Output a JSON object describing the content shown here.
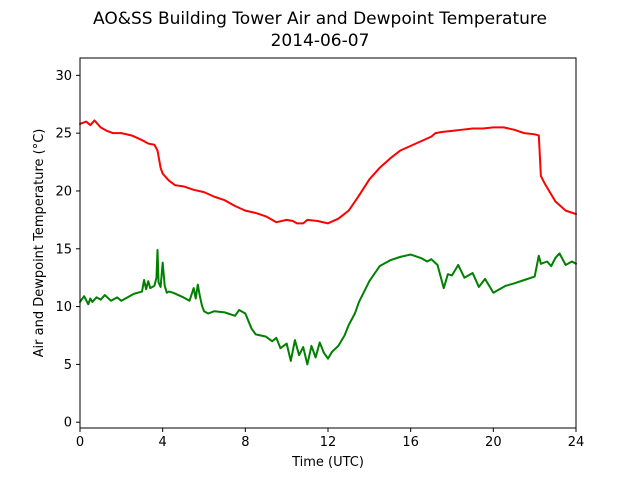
{
  "chart_data": {
    "type": "line",
    "title": "AO&SS Building Tower Air and Dewpoint Temperature",
    "subtitle": "2014-06-07",
    "xlabel": "Time (UTC)",
    "ylabel": "Air and Dewpoint Temperature (°C)",
    "xlim": [
      0,
      24
    ],
    "ylim": [
      -0.5,
      31.5
    ],
    "xticks": [
      0,
      4,
      8,
      12,
      16,
      20,
      24
    ],
    "yticks": [
      0,
      5,
      10,
      15,
      20,
      25,
      30
    ],
    "grid": false,
    "legend": null,
    "series": [
      {
        "color": "#ff0000",
        "x": [
          0,
          0.3,
          0.5,
          0.7,
          1.0,
          1.3,
          1.6,
          2.0,
          2.5,
          3.0,
          3.3,
          3.6,
          3.75,
          3.9,
          4.0,
          4.3,
          4.6,
          5.0,
          5.5,
          6.0,
          6.5,
          7.0,
          7.5,
          8.0,
          8.5,
          9.0,
          9.5,
          10.0,
          10.3,
          10.5,
          10.8,
          11.0,
          11.5,
          12.0,
          12.5,
          13.0,
          13.5,
          14.0,
          14.5,
          15.0,
          15.5,
          16.0,
          16.5,
          17.0,
          17.2,
          17.5,
          18.0,
          18.5,
          19.0,
          19.5,
          20.0,
          20.5,
          21.0,
          21.5,
          22.0,
          22.2,
          22.3,
          22.5,
          23.0,
          23.5,
          24.0
        ],
        "y": [
          25.8,
          26.0,
          25.7,
          26.1,
          25.5,
          25.2,
          25.0,
          25.0,
          24.8,
          24.4,
          24.1,
          24.0,
          23.5,
          22.0,
          21.5,
          20.9,
          20.5,
          20.4,
          20.1,
          19.9,
          19.5,
          19.2,
          18.7,
          18.3,
          18.1,
          17.8,
          17.3,
          17.5,
          17.4,
          17.2,
          17.2,
          17.5,
          17.4,
          17.2,
          17.6,
          18.3,
          19.6,
          21.0,
          22.0,
          22.8,
          23.5,
          23.9,
          24.3,
          24.7,
          25.0,
          25.1,
          25.2,
          25.3,
          25.4,
          25.4,
          25.5,
          25.5,
          25.3,
          25.0,
          24.9,
          24.8,
          21.3,
          20.6,
          19.1,
          18.3,
          18.0
        ]
      },
      {
        "color": "#008000",
        "x": [
          0,
          0.2,
          0.4,
          0.5,
          0.6,
          0.8,
          1.0,
          1.2,
          1.5,
          1.8,
          2.0,
          2.3,
          2.6,
          3.0,
          3.1,
          3.2,
          3.3,
          3.4,
          3.6,
          3.7,
          3.75,
          3.8,
          3.9,
          4.0,
          4.1,
          4.2,
          4.3,
          4.5,
          5.0,
          5.3,
          5.5,
          5.6,
          5.7,
          5.8,
          5.9,
          6.0,
          6.2,
          6.5,
          7.0,
          7.5,
          7.7,
          8.0,
          8.3,
          8.5,
          9.0,
          9.3,
          9.5,
          9.7,
          10.0,
          10.2,
          10.4,
          10.6,
          10.8,
          11.0,
          11.2,
          11.4,
          11.6,
          11.8,
          12.0,
          12.2,
          12.5,
          12.8,
          13.0,
          13.3,
          13.5,
          14.0,
          14.5,
          15.0,
          15.5,
          16.0,
          16.5,
          16.8,
          17.0,
          17.3,
          17.6,
          17.8,
          18.0,
          18.3,
          18.6,
          19.0,
          19.3,
          19.6,
          20.0,
          20.3,
          20.6,
          21.0,
          21.5,
          22.0,
          22.2,
          22.3,
          22.6,
          22.8,
          23.0,
          23.2,
          23.5,
          23.8,
          24.0
        ],
        "y": [
          10.4,
          10.9,
          10.2,
          10.7,
          10.4,
          10.8,
          10.6,
          11.0,
          10.5,
          10.8,
          10.5,
          10.8,
          11.1,
          11.3,
          12.3,
          11.5,
          12.2,
          11.6,
          11.8,
          12.5,
          14.9,
          12.1,
          11.7,
          13.8,
          11.8,
          11.2,
          11.3,
          11.2,
          10.8,
          10.5,
          11.6,
          10.7,
          11.9,
          10.9,
          10.1,
          9.6,
          9.4,
          9.6,
          9.5,
          9.2,
          9.7,
          9.4,
          8.1,
          7.6,
          7.4,
          7.0,
          7.3,
          6.4,
          6.8,
          5.3,
          7.1,
          5.8,
          6.5,
          5.0,
          6.6,
          5.6,
          6.9,
          6.0,
          5.5,
          6.1,
          6.6,
          7.5,
          8.4,
          9.4,
          10.4,
          12.2,
          13.5,
          14.0,
          14.3,
          14.5,
          14.2,
          13.9,
          14.1,
          13.6,
          11.6,
          12.8,
          12.7,
          13.6,
          12.5,
          12.9,
          11.7,
          12.4,
          11.2,
          11.5,
          11.8,
          12.0,
          12.3,
          12.6,
          14.4,
          13.7,
          13.9,
          13.5,
          14.2,
          14.6,
          13.6,
          13.9,
          13.7
        ]
      }
    ]
  }
}
